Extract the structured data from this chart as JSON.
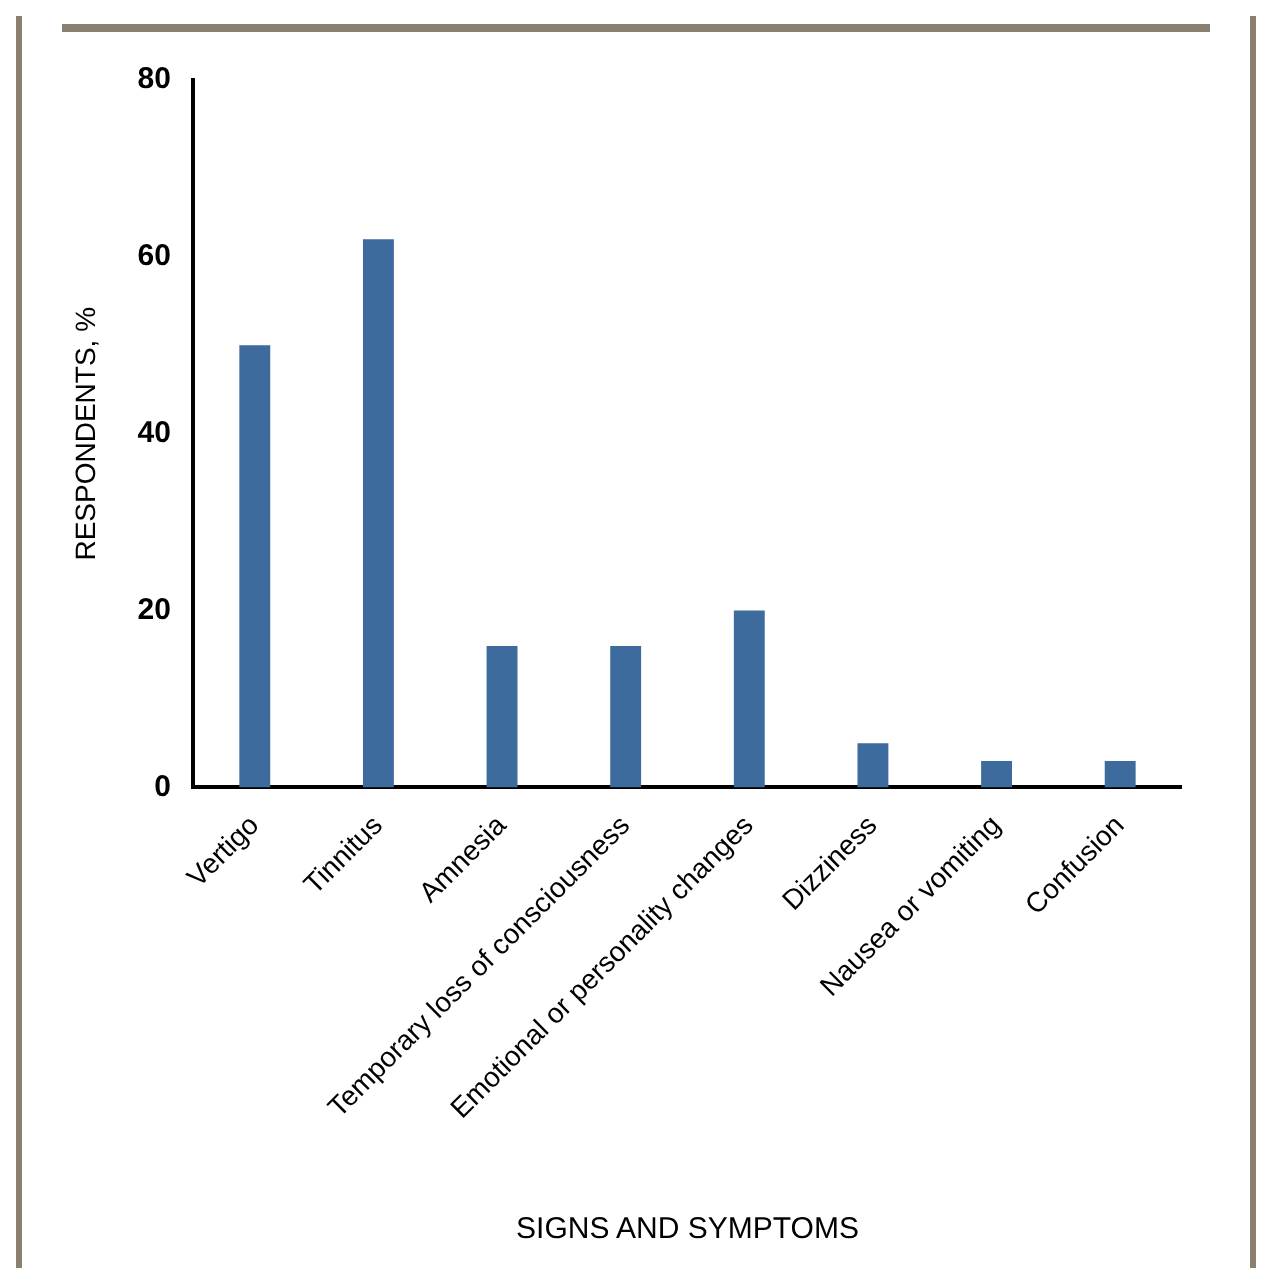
{
  "chart_data": {
    "type": "bar",
    "xlabel": "SIGNS AND SYMPTOMS",
    "ylabel": "RESPONDENTS, %",
    "categories": [
      "Vertigo",
      "Tinnitus",
      "Amnesia",
      "Temporary loss of consciousness",
      "Emotional or personality changes",
      "Dizziness",
      "Nausea or vomiting",
      "Confusion"
    ],
    "values": [
      50,
      62,
      16,
      16,
      20,
      5,
      3,
      3
    ],
    "color": "#3e6b9e",
    "ylim": [
      0,
      80
    ],
    "yticks": [
      0,
      20,
      40,
      60,
      80
    ],
    "grid": false,
    "legend": false
  }
}
